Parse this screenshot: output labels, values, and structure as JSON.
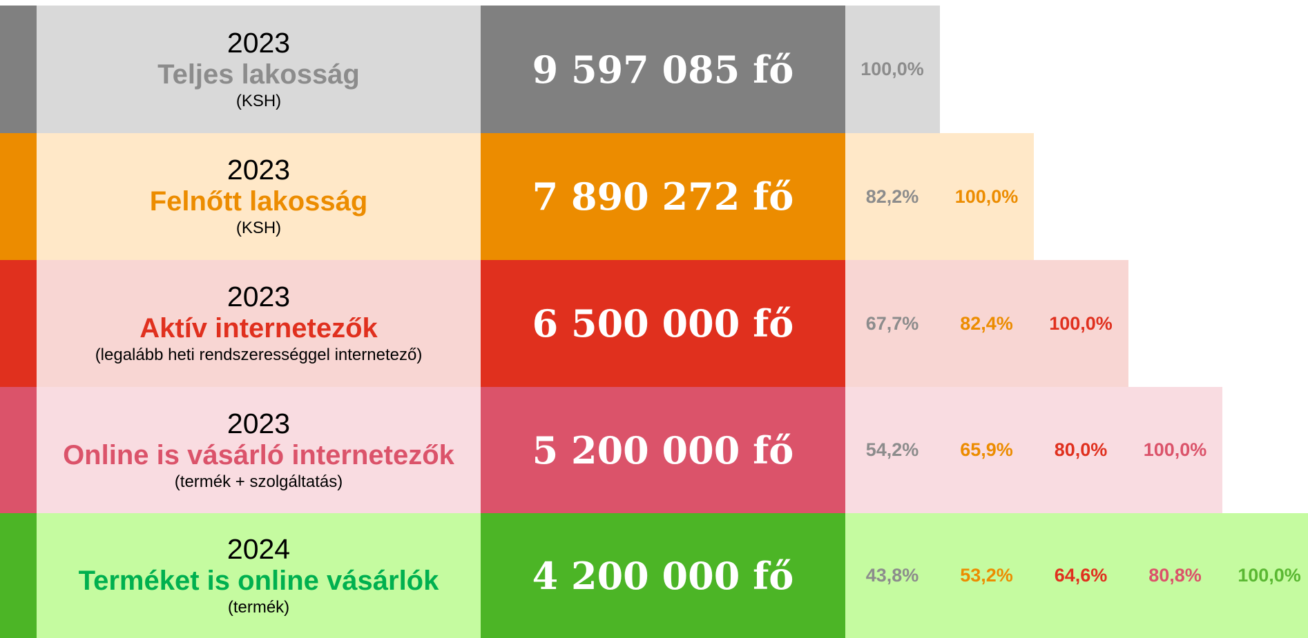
{
  "rows": [
    {
      "year": "2023",
      "title": "Teljes lakosság",
      "subtitle": "(KSH)",
      "value": "9 597 085 fő",
      "percentages": [
        "100,0%"
      ]
    },
    {
      "year": "2023",
      "title": "Felnőtt lakosság",
      "subtitle": "(KSH)",
      "value": "7 890 272 fő",
      "percentages": [
        "82,2%",
        "100,0%"
      ]
    },
    {
      "year": "2023",
      "title": "Aktív internetezők",
      "subtitle": "(legalább heti rendszerességgel internetező)",
      "value": "6 500 000 fő",
      "percentages": [
        "67,7%",
        "82,4%",
        "100,0%"
      ]
    },
    {
      "year": "2023",
      "title": "Online is vásárló internetezők",
      "subtitle": "(termék + szolgáltatás)",
      "value": "5 200 000 fő",
      "percentages": [
        "54,2%",
        "65,9%",
        "80,0%",
        "100,0%"
      ]
    },
    {
      "year": "2024",
      "title": "Terméket is online vásárlók",
      "subtitle": "(termék)",
      "value": "4 200 000 fő",
      "percentages": [
        "43,8%",
        "53,2%",
        "64,6%",
        "80,8%",
        "100,0%"
      ]
    }
  ]
}
